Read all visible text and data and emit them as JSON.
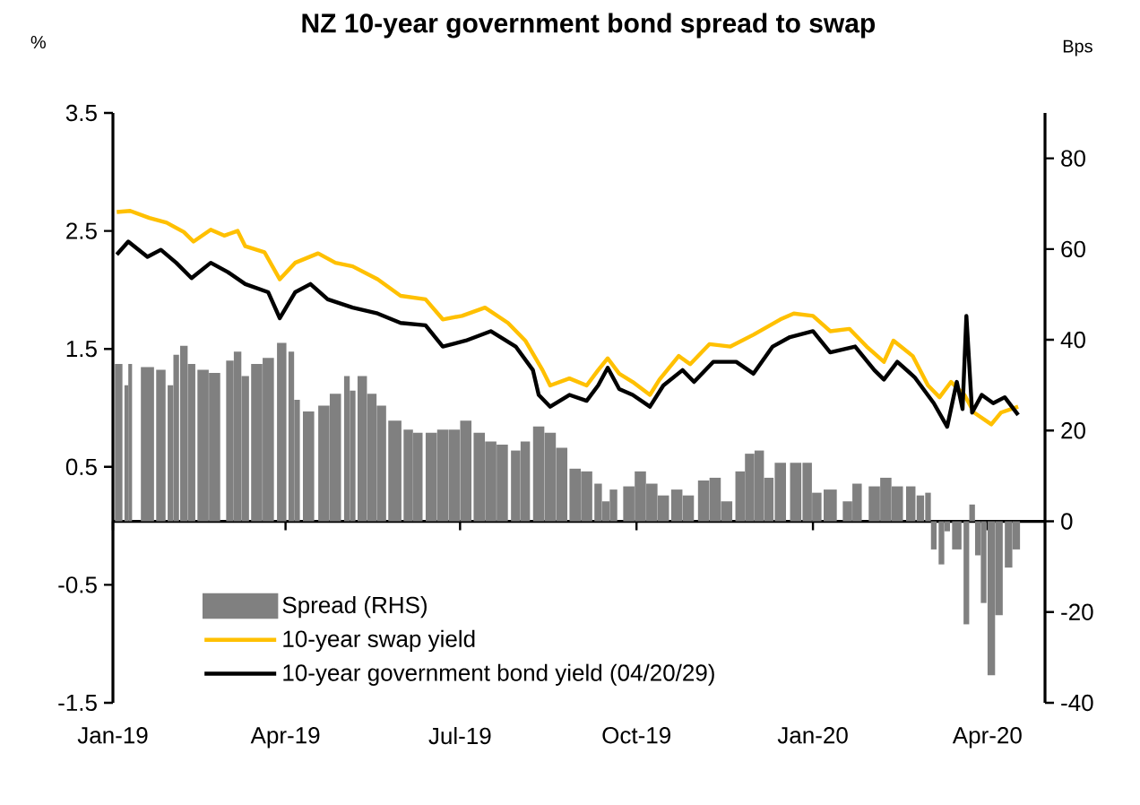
{
  "chart_data": {
    "type": "line",
    "title": "NZ 10-year government bond spread to swap",
    "ylabel": "%",
    "y2label": "Bps",
    "xlim": [
      "2019-01-01",
      "2020-05-01"
    ],
    "xticks": [
      {
        "value": "2019-01-01",
        "label": "Jan-19"
      },
      {
        "value": "2019-04-01",
        "label": "Apr-19"
      },
      {
        "value": "2019-07-01",
        "label": "Jul-19"
      },
      {
        "value": "2019-10-01",
        "label": "Oct-19"
      },
      {
        "value": "2020-01-01",
        "label": "Jan-20"
      },
      {
        "value": "2020-04-01",
        "label": "Apr-20"
      }
    ],
    "ylim": [
      -1.5,
      3.5
    ],
    "yticks": [
      -1.5,
      -0.5,
      0.5,
      1.5,
      2.5,
      3.5
    ],
    "y2lim": [
      -40,
      90
    ],
    "y2ticks": [
      -40,
      -20,
      0,
      20,
      40,
      60,
      80
    ],
    "legend": "bottom",
    "series": [
      {
        "name": "Spread (RHS)",
        "type": "bar",
        "axis": "y2",
        "color": "#808080",
        "x": [
          "2019-01-04",
          "2019-01-08",
          "2019-01-10",
          "2019-01-19",
          "2019-01-26",
          "2019-01-31",
          "2019-02-03",
          "2019-02-07",
          "2019-02-11",
          "2019-02-17",
          "2019-02-23",
          "2019-03-03",
          "2019-03-07",
          "2019-03-11",
          "2019-03-17",
          "2019-03-23",
          "2019-03-30",
          "2019-04-04",
          "2019-04-07",
          "2019-04-13",
          "2019-04-21",
          "2019-04-27",
          "2019-05-03",
          "2019-05-06",
          "2019-05-11",
          "2019-05-16",
          "2019-05-21",
          "2019-05-28",
          "2019-06-04",
          "2019-06-09",
          "2019-06-16",
          "2019-06-22",
          "2019-06-28",
          "2019-07-04",
          "2019-07-11",
          "2019-07-17",
          "2019-07-23",
          "2019-07-30",
          "2019-08-04",
          "2019-08-11",
          "2019-08-17",
          "2019-08-23",
          "2019-08-30",
          "2019-09-05",
          "2019-09-11",
          "2019-09-15",
          "2019-09-19",
          "2019-09-27",
          "2019-10-03",
          "2019-10-09",
          "2019-10-15",
          "2019-10-22",
          "2019-10-28",
          "2019-11-05",
          "2019-11-11",
          "2019-11-17",
          "2019-11-24",
          "2019-11-29",
          "2019-12-04",
          "2019-12-09",
          "2019-12-15",
          "2019-12-23",
          "2019-12-29",
          "2020-01-03",
          "2020-01-10",
          "2020-01-19",
          "2020-01-24",
          "2020-02-02",
          "2020-02-08",
          "2020-02-14",
          "2020-02-21",
          "2020-02-26",
          "2020-03-01",
          "2020-03-04",
          "2020-03-08",
          "2020-03-11",
          "2020-03-16",
          "2020-03-21",
          "2020-03-24",
          "2020-03-27",
          "2020-03-30",
          "2020-04-03",
          "2020-04-07",
          "2020-04-12",
          "2020-04-16"
        ],
        "values": [
          34.7,
          30,
          34.7,
          34,
          33.4,
          30,
          36.7,
          38.7,
          34.7,
          33.4,
          32.7,
          35.4,
          37.4,
          32,
          34.7,
          36,
          39.3,
          37.4,
          26.8,
          24.2,
          25.5,
          28.1,
          32,
          28.8,
          32,
          28.1,
          25.5,
          22.2,
          20.2,
          19.5,
          19.5,
          20.2,
          20.2,
          22.2,
          19.5,
          17.6,
          16.9,
          15.6,
          17.6,
          20.9,
          19.5,
          16.2,
          11.6,
          11,
          8.3,
          4.4,
          7,
          7.7,
          11,
          8.3,
          5.7,
          7,
          5.7,
          9,
          9.6,
          4.4,
          11,
          14.9,
          15.6,
          9.6,
          12.9,
          12.9,
          12.9,
          6.3,
          7,
          4.4,
          8.3,
          7.7,
          9.6,
          7.7,
          7.7,
          5.7,
          6.3,
          -6.2,
          -9.5,
          -2.2,
          -6.2,
          -22.7,
          3.7,
          -7.5,
          -18,
          -33.9,
          -20.7,
          -10.2,
          -6.2
        ]
      },
      {
        "name": "10-year swap yield",
        "color": "#ffc000",
        "x": [
          "2019-01-03",
          "2019-01-10",
          "2019-01-20",
          "2019-01-29",
          "2019-02-07",
          "2019-02-12",
          "2019-02-21",
          "2019-02-28",
          "2019-03-07",
          "2019-03-11",
          "2019-03-21",
          "2019-03-29",
          "2019-04-06",
          "2019-04-18",
          "2019-04-27",
          "2019-05-06",
          "2019-05-19",
          "2019-05-31",
          "2019-06-13",
          "2019-06-22",
          "2019-07-02",
          "2019-07-14",
          "2019-07-26",
          "2019-08-04",
          "2019-08-13",
          "2019-08-17",
          "2019-08-27",
          "2019-09-05",
          "2019-09-11",
          "2019-09-16",
          "2019-09-22",
          "2019-09-29",
          "2019-10-08",
          "2019-10-13",
          "2019-10-23",
          "2019-10-29",
          "2019-11-08",
          "2019-11-19",
          "2019-12-01",
          "2019-12-15",
          "2019-12-22",
          "2020-01-01",
          "2020-01-10",
          "2020-01-20",
          "2020-01-29",
          "2020-02-07",
          "2020-02-12",
          "2020-02-22",
          "2020-03-01",
          "2020-03-07",
          "2020-03-13",
          "2020-03-20",
          "2020-03-25",
          "2020-04-03",
          "2020-04-08",
          "2020-04-17"
        ],
        "values": [
          2.66,
          2.67,
          2.61,
          2.57,
          2.49,
          2.41,
          2.51,
          2.46,
          2.5,
          2.37,
          2.32,
          2.09,
          2.23,
          2.31,
          2.23,
          2.2,
          2.09,
          1.95,
          1.92,
          1.75,
          1.78,
          1.85,
          1.72,
          1.57,
          1.32,
          1.19,
          1.25,
          1.19,
          1.32,
          1.42,
          1.29,
          1.22,
          1.11,
          1.24,
          1.44,
          1.37,
          1.54,
          1.52,
          1.62,
          1.75,
          1.8,
          1.78,
          1.65,
          1.67,
          1.52,
          1.39,
          1.57,
          1.44,
          1.19,
          1.09,
          1.22,
          1.11,
          0.96,
          0.86,
          0.96,
          1.01
        ]
      },
      {
        "name": "10-year government bond yield (04/20/29)",
        "color": "#000000",
        "x": [
          "2019-01-03",
          "2019-01-09",
          "2019-01-19",
          "2019-01-26",
          "2019-02-03",
          "2019-02-11",
          "2019-02-21",
          "2019-03-02",
          "2019-03-11",
          "2019-03-23",
          "2019-03-29",
          "2019-04-06",
          "2019-04-14",
          "2019-04-23",
          "2019-05-06",
          "2019-05-19",
          "2019-05-31",
          "2019-06-13",
          "2019-06-22",
          "2019-07-04",
          "2019-07-17",
          "2019-07-30",
          "2019-08-08",
          "2019-08-11",
          "2019-08-17",
          "2019-08-27",
          "2019-09-05",
          "2019-09-11",
          "2019-09-16",
          "2019-09-22",
          "2019-09-29",
          "2019-10-08",
          "2019-10-15",
          "2019-10-25",
          "2019-10-31",
          "2019-11-10",
          "2019-11-22",
          "2019-12-01",
          "2019-12-11",
          "2019-12-20",
          "2020-01-01",
          "2020-01-10",
          "2020-01-23",
          "2020-02-02",
          "2020-02-07",
          "2020-02-14",
          "2020-02-23",
          "2020-03-04",
          "2020-03-11",
          "2020-03-16",
          "2020-03-19",
          "2020-03-21",
          "2020-03-24",
          "2020-03-29",
          "2020-04-04",
          "2020-04-10",
          "2020-04-17"
        ],
        "values": [
          2.3,
          2.41,
          2.28,
          2.34,
          2.23,
          2.1,
          2.23,
          2.15,
          2.05,
          1.98,
          1.76,
          1.98,
          2.05,
          1.92,
          1.85,
          1.8,
          1.72,
          1.7,
          1.52,
          1.57,
          1.65,
          1.52,
          1.32,
          1.11,
          1.01,
          1.11,
          1.06,
          1.19,
          1.34,
          1.16,
          1.11,
          1.01,
          1.19,
          1.32,
          1.22,
          1.39,
          1.39,
          1.29,
          1.52,
          1.6,
          1.65,
          1.47,
          1.52,
          1.32,
          1.24,
          1.39,
          1.26,
          1.04,
          0.84,
          1.22,
          0.99,
          1.78,
          0.96,
          1.11,
          1.04,
          1.09,
          0.94
        ]
      }
    ]
  }
}
